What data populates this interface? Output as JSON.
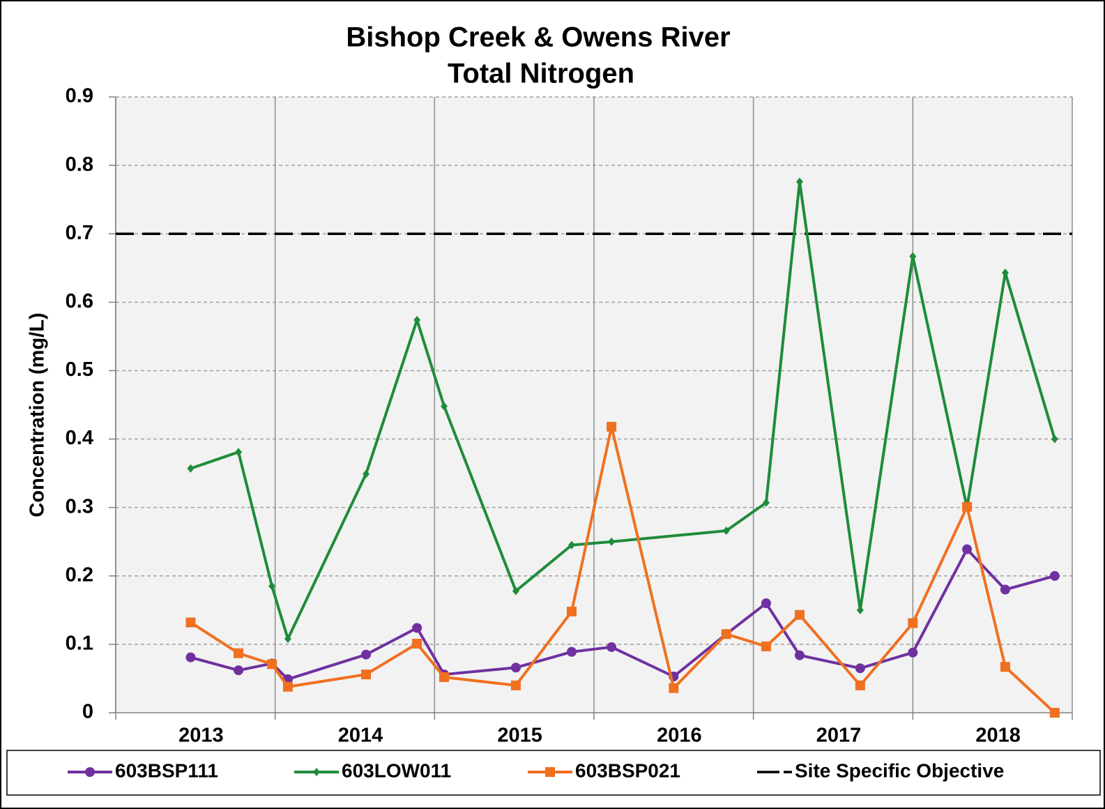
{
  "chart_data": {
    "type": "line",
    "title": [
      "Bishop Creek & Owens River",
      "Total Nitrogen"
    ],
    "y_label": "Concentration  (mg/L)",
    "categories": [
      "2013",
      "2014",
      "2015",
      "2016",
      "2017",
      "2018"
    ],
    "xlim": [
      2013,
      2019
    ],
    "xticks": [
      2013,
      2014,
      2015,
      2016,
      2017,
      2018,
      2019
    ],
    "ylim": [
      0,
      0.9
    ],
    "yticks": [
      0,
      0.1,
      0.2,
      0.3,
      0.4,
      0.5,
      0.6,
      0.7,
      0.8,
      0.9
    ],
    "grid": true,
    "legend": "bottom",
    "series": [
      {
        "name": "603BSP111",
        "color": "#7030a0",
        "marker": "circle",
        "x": [
          2013.47,
          2013.77,
          2013.98,
          2014.08,
          2014.57,
          2014.89,
          2015.06,
          2015.51,
          2015.86,
          2016.11,
          2016.5,
          2016.83,
          2017.08,
          2017.29,
          2017.67,
          2018.0,
          2018.34,
          2018.58,
          2018.89
        ],
        "values": [
          0.081,
          0.062,
          0.072,
          0.049,
          0.085,
          0.124,
          0.056,
          0.066,
          0.089,
          0.096,
          0.053,
          0.115,
          0.16,
          0.084,
          0.065,
          0.088,
          0.239,
          0.18,
          0.2
        ]
      },
      {
        "name": "603LOW011",
        "color": "#1e8c3a",
        "marker": "diamond",
        "x": [
          2013.47,
          2013.77,
          2013.98,
          2014.08,
          2014.57,
          2014.89,
          2015.06,
          2015.51,
          2015.86,
          2016.11,
          2016.83,
          2017.08,
          2017.29,
          2017.67,
          2018.0,
          2018.34,
          2018.58,
          2018.89
        ],
        "values": [
          0.357,
          0.381,
          0.185,
          0.108,
          0.349,
          0.574,
          0.448,
          0.178,
          0.245,
          0.25,
          0.266,
          0.307,
          0.776,
          0.15,
          0.667,
          0.3,
          0.643,
          0.4
        ]
      },
      {
        "name": "603BSP021",
        "color": "#f07020",
        "marker": "square",
        "x": [
          2013.47,
          2013.77,
          2013.98,
          2014.08,
          2014.57,
          2014.89,
          2015.06,
          2015.51,
          2015.86,
          2016.11,
          2016.5,
          2016.83,
          2017.08,
          2017.29,
          2017.67,
          2018.0,
          2018.34,
          2018.58,
          2018.89
        ],
        "values": [
          0.132,
          0.087,
          0.071,
          0.038,
          0.056,
          0.101,
          0.052,
          0.04,
          0.148,
          0.418,
          0.036,
          0.115,
          0.097,
          0.143,
          0.04,
          0.131,
          0.301,
          0.067,
          0
        ]
      }
    ],
    "reference": {
      "name": "Site Specific Objective",
      "value": 0.7,
      "color": "#000000"
    }
  }
}
